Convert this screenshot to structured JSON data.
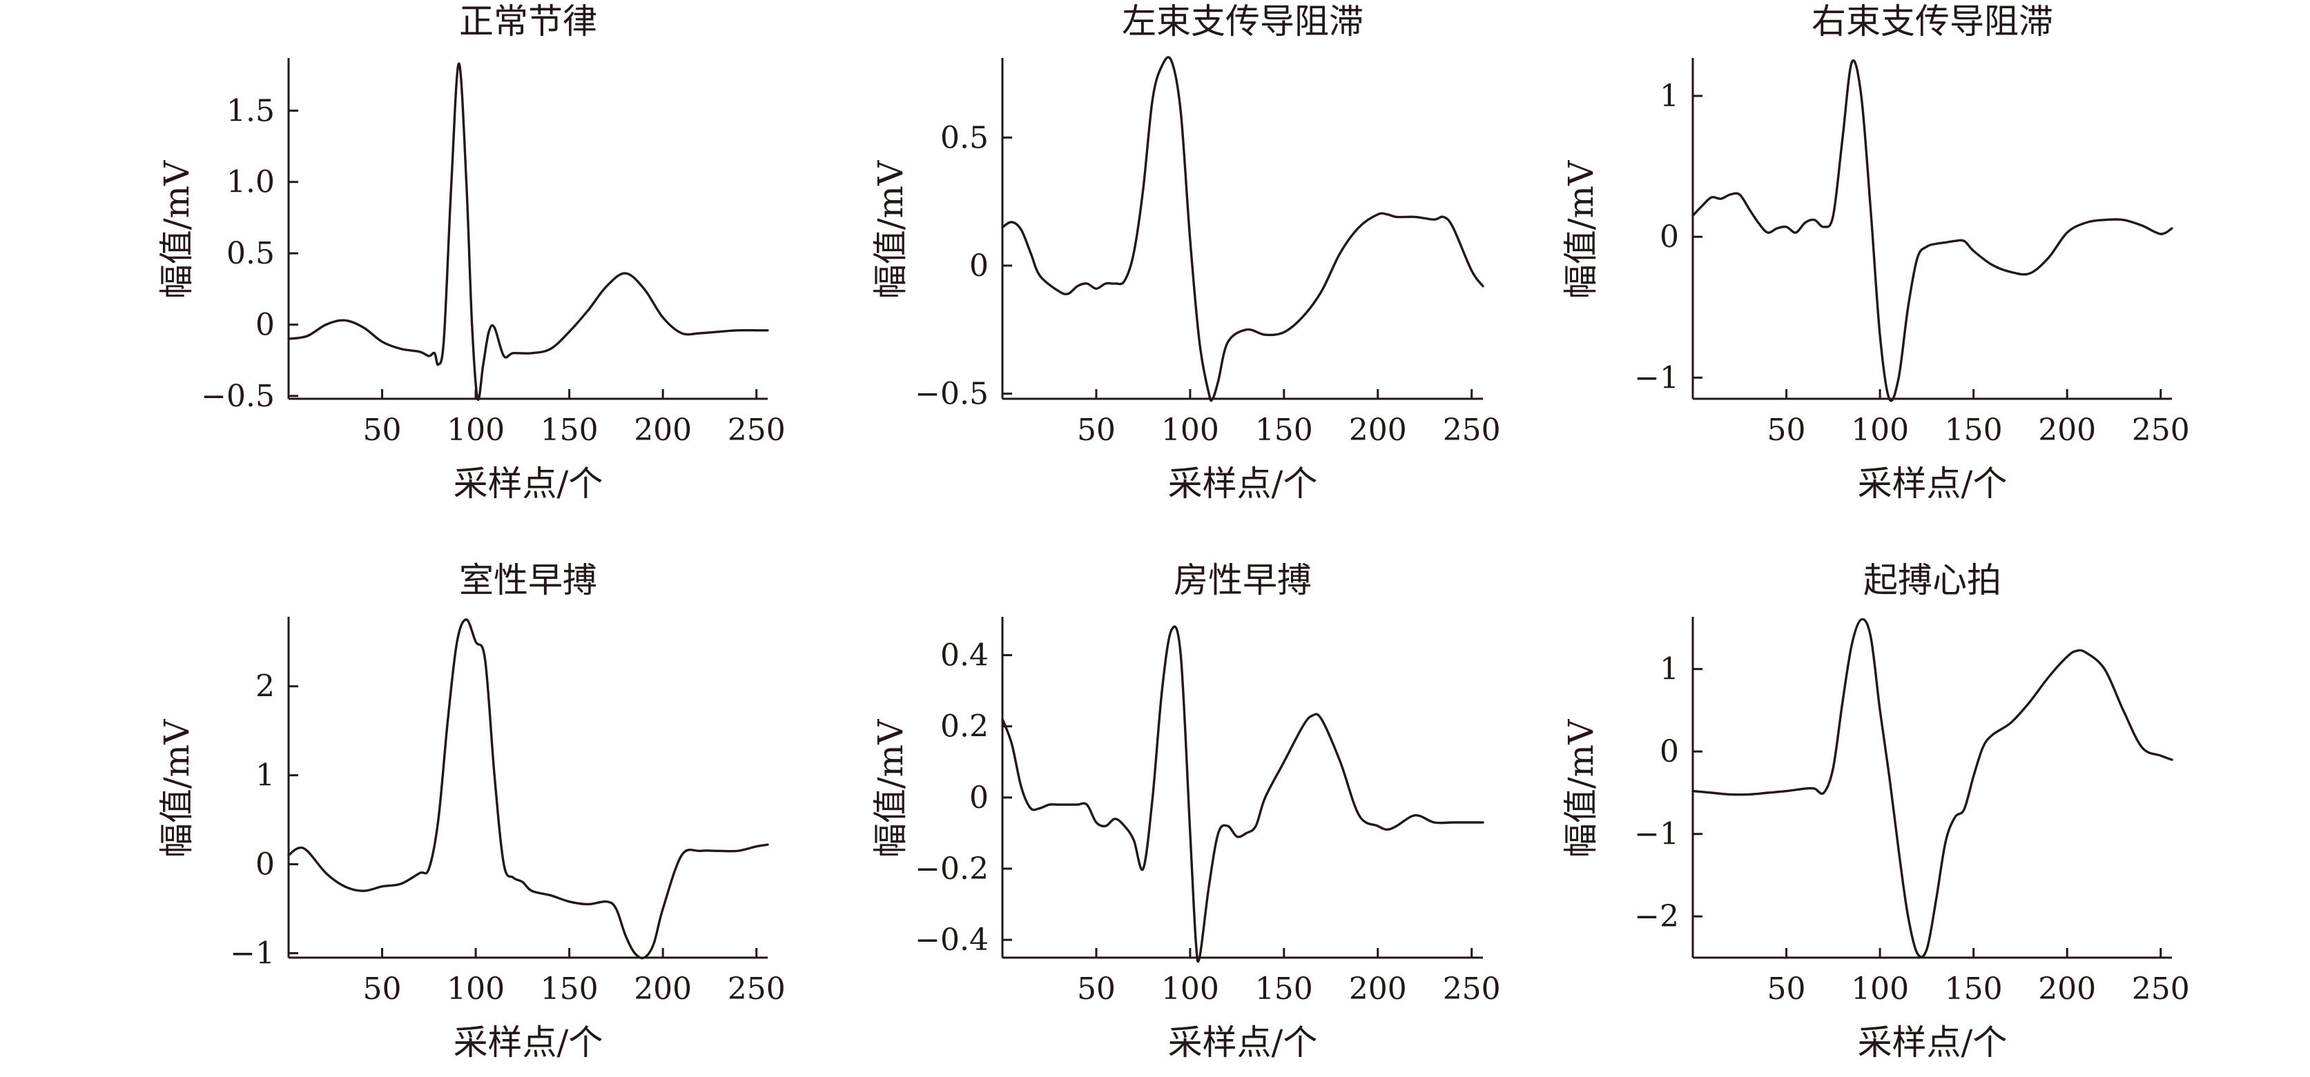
{
  "chart_data": [
    {
      "type": "line",
      "title": "正常节律",
      "xlabel": "采样点/个",
      "ylabel": "幅值/mV",
      "xlim": [
        0,
        256
      ],
      "ylim": [
        -0.52,
        1.85
      ],
      "xticks": [
        50,
        100,
        150,
        200,
        250
      ],
      "xticklabels": [
        "50",
        "100",
        "150",
        "200",
        "250"
      ],
      "yticks": [
        -0.5,
        0,
        0.5,
        1.0,
        1.5
      ],
      "yticklabels": [
        "−0.5",
        "0",
        "0.5",
        "1.0",
        "1.5"
      ],
      "series": [
        {
          "x": [
            0,
            10,
            20,
            30,
            40,
            50,
            60,
            70,
            75,
            78,
            80,
            83,
            87,
            91,
            95,
            98,
            101,
            104,
            107,
            110,
            115,
            120,
            130,
            140,
            150,
            160,
            170,
            180,
            190,
            200,
            210,
            220,
            230,
            240,
            250,
            256
          ],
          "y": [
            -0.1,
            -0.08,
            0.0,
            0.03,
            -0.02,
            -0.12,
            -0.17,
            -0.19,
            -0.22,
            -0.2,
            -0.28,
            -0.1,
            1.0,
            1.83,
            1.0,
            0.0,
            -0.52,
            -0.28,
            -0.05,
            -0.02,
            -0.22,
            -0.2,
            -0.2,
            -0.17,
            -0.05,
            0.1,
            0.27,
            0.36,
            0.25,
            0.05,
            -0.06,
            -0.06,
            -0.05,
            -0.04,
            -0.04,
            -0.04
          ]
        }
      ]
    },
    {
      "type": "line",
      "title": "左束支传导阻滞",
      "xlabel": "采样点/个",
      "ylabel": "幅值/mV",
      "xlim": [
        0,
        256
      ],
      "ylim": [
        -0.52,
        0.8
      ],
      "xticks": [
        50,
        100,
        150,
        200,
        250
      ],
      "xticklabels": [
        "50",
        "100",
        "150",
        "200",
        "250"
      ],
      "yticks": [
        -0.5,
        0,
        0.5
      ],
      "yticklabels": [
        "−0.5",
        "0",
        "0.5"
      ],
      "series": [
        {
          "x": [
            0,
            5,
            10,
            15,
            20,
            30,
            35,
            40,
            45,
            50,
            55,
            60,
            65,
            70,
            75,
            80,
            85,
            90,
            95,
            100,
            105,
            110,
            112,
            115,
            120,
            130,
            140,
            150,
            160,
            170,
            180,
            190,
            200,
            205,
            210,
            220,
            230,
            235,
            240,
            250,
            256
          ],
          "y": [
            0.15,
            0.17,
            0.14,
            0.05,
            -0.04,
            -0.1,
            -0.11,
            -0.08,
            -0.07,
            -0.09,
            -0.07,
            -0.07,
            -0.06,
            0.05,
            0.3,
            0.65,
            0.78,
            0.8,
            0.6,
            0.1,
            -0.3,
            -0.5,
            -0.52,
            -0.45,
            -0.3,
            -0.25,
            -0.27,
            -0.26,
            -0.2,
            -0.1,
            0.05,
            0.15,
            0.2,
            0.2,
            0.19,
            0.19,
            0.18,
            0.19,
            0.15,
            -0.02,
            -0.08
          ]
        }
      ]
    },
    {
      "type": "line",
      "title": "右束支传导阻滞",
      "xlabel": "采样点/个",
      "ylabel": "幅值/mV",
      "xlim": [
        0,
        256
      ],
      "ylim": [
        -1.15,
        1.25
      ],
      "xticks": [
        50,
        100,
        150,
        200,
        250
      ],
      "xticklabels": [
        "50",
        "100",
        "150",
        "200",
        "250"
      ],
      "yticks": [
        -1,
        0,
        1
      ],
      "yticklabels": [
        "−1",
        "0",
        "1"
      ],
      "series": [
        {
          "x": [
            0,
            5,
            10,
            15,
            20,
            25,
            30,
            35,
            40,
            45,
            50,
            55,
            60,
            65,
            70,
            75,
            80,
            85,
            90,
            95,
            100,
            105,
            110,
            115,
            120,
            125,
            130,
            135,
            140,
            145,
            150,
            160,
            170,
            180,
            190,
            200,
            210,
            220,
            230,
            240,
            250,
            256
          ],
          "y": [
            0.15,
            0.22,
            0.28,
            0.27,
            0.3,
            0.3,
            0.2,
            0.1,
            0.03,
            0.06,
            0.07,
            0.03,
            0.1,
            0.12,
            0.07,
            0.15,
            0.7,
            1.24,
            1.0,
            0.2,
            -0.7,
            -1.15,
            -1.0,
            -0.5,
            -0.15,
            -0.07,
            -0.05,
            -0.04,
            -0.03,
            -0.03,
            -0.1,
            -0.2,
            -0.25,
            -0.26,
            -0.15,
            0.03,
            0.1,
            0.12,
            0.12,
            0.08,
            0.02,
            0.06
          ]
        }
      ]
    },
    {
      "type": "line",
      "title": "室性早搏",
      "xlabel": "采样点/个",
      "ylabel": "幅值/mV",
      "xlim": [
        0,
        256
      ],
      "ylim": [
        -1.05,
        2.75
      ],
      "xticks": [
        50,
        100,
        150,
        200,
        250
      ],
      "xticklabels": [
        "50",
        "100",
        "150",
        "200",
        "250"
      ],
      "yticks": [
        -1,
        0,
        1,
        2
      ],
      "yticklabels": [
        "−1",
        "0",
        "1",
        "2"
      ],
      "series": [
        {
          "x": [
            0,
            5,
            10,
            20,
            30,
            40,
            50,
            60,
            70,
            75,
            80,
            85,
            90,
            95,
            100,
            105,
            110,
            115,
            120,
            125,
            130,
            140,
            150,
            160,
            170,
            175,
            180,
            185,
            190,
            195,
            200,
            210,
            220,
            230,
            240,
            250,
            256
          ],
          "y": [
            0.1,
            0.18,
            0.15,
            -0.1,
            -0.25,
            -0.3,
            -0.25,
            -0.22,
            -0.1,
            -0.05,
            0.5,
            1.6,
            2.5,
            2.75,
            2.5,
            2.3,
            1.0,
            0.0,
            -0.15,
            -0.2,
            -0.3,
            -0.35,
            -0.42,
            -0.45,
            -0.42,
            -0.5,
            -0.8,
            -1.0,
            -1.05,
            -0.9,
            -0.5,
            0.1,
            0.15,
            0.15,
            0.15,
            0.2,
            0.22
          ]
        }
      ]
    },
    {
      "type": "line",
      "title": "房性早搏",
      "xlabel": "采样点/个",
      "ylabel": "幅值/mV",
      "xlim": [
        0,
        256
      ],
      "ylim": [
        -0.45,
        0.5
      ],
      "xticks": [
        50,
        100,
        150,
        200,
        250
      ],
      "xticklabels": [
        "50",
        "100",
        "150",
        "200",
        "250"
      ],
      "yticks": [
        -0.4,
        -0.2,
        0,
        0.2,
        0.4
      ],
      "yticklabels": [
        "−0.4",
        "−0.2",
        "0",
        "0.2",
        "0.4"
      ],
      "series": [
        {
          "x": [
            0,
            5,
            10,
            15,
            20,
            25,
            30,
            35,
            40,
            45,
            50,
            55,
            60,
            65,
            70,
            75,
            80,
            85,
            90,
            95,
            100,
            103,
            105,
            110,
            115,
            120,
            125,
            130,
            135,
            140,
            150,
            160,
            165,
            170,
            180,
            190,
            200,
            205,
            210,
            220,
            230,
            240,
            250,
            256
          ],
          "y": [
            0.22,
            0.15,
            0.03,
            -0.03,
            -0.03,
            -0.02,
            -0.02,
            -0.02,
            -0.02,
            -0.02,
            -0.07,
            -0.08,
            -0.06,
            -0.08,
            -0.12,
            -0.2,
            0.0,
            0.3,
            0.47,
            0.4,
            -0.1,
            -0.4,
            -0.45,
            -0.25,
            -0.1,
            -0.08,
            -0.11,
            -0.1,
            -0.08,
            0.0,
            0.1,
            0.2,
            0.23,
            0.22,
            0.1,
            -0.05,
            -0.08,
            -0.09,
            -0.08,
            -0.05,
            -0.07,
            -0.07,
            -0.07,
            -0.07
          ]
        }
      ]
    },
    {
      "type": "line",
      "title": "起搏心拍",
      "xlabel": "采样点/个",
      "ylabel": "幅值/mV",
      "xlim": [
        0,
        256
      ],
      "ylim": [
        -2.5,
        1.6
      ],
      "xticks": [
        50,
        100,
        150,
        200,
        250
      ],
      "xticklabels": [
        "50",
        "100",
        "150",
        "200",
        "250"
      ],
      "yticks": [
        -2,
        -1,
        0,
        1
      ],
      "yticklabels": [
        "−2",
        "−1",
        "0",
        "1"
      ],
      "series": [
        {
          "x": [
            0,
            10,
            20,
            30,
            40,
            50,
            60,
            65,
            70,
            75,
            80,
            85,
            90,
            95,
            100,
            105,
            110,
            115,
            120,
            125,
            130,
            135,
            140,
            145,
            150,
            155,
            160,
            170,
            180,
            190,
            200,
            205,
            210,
            220,
            230,
            240,
            250,
            256
          ],
          "y": [
            -0.48,
            -0.5,
            -0.52,
            -0.52,
            -0.5,
            -0.48,
            -0.45,
            -0.45,
            -0.5,
            -0.2,
            0.6,
            1.3,
            1.6,
            1.4,
            0.5,
            -0.3,
            -1.2,
            -2.0,
            -2.45,
            -2.4,
            -1.8,
            -1.1,
            -0.8,
            -0.7,
            -0.3,
            0.05,
            0.2,
            0.35,
            0.6,
            0.9,
            1.15,
            1.22,
            1.2,
            1.0,
            0.5,
            0.05,
            -0.05,
            -0.1
          ]
        }
      ]
    }
  ]
}
